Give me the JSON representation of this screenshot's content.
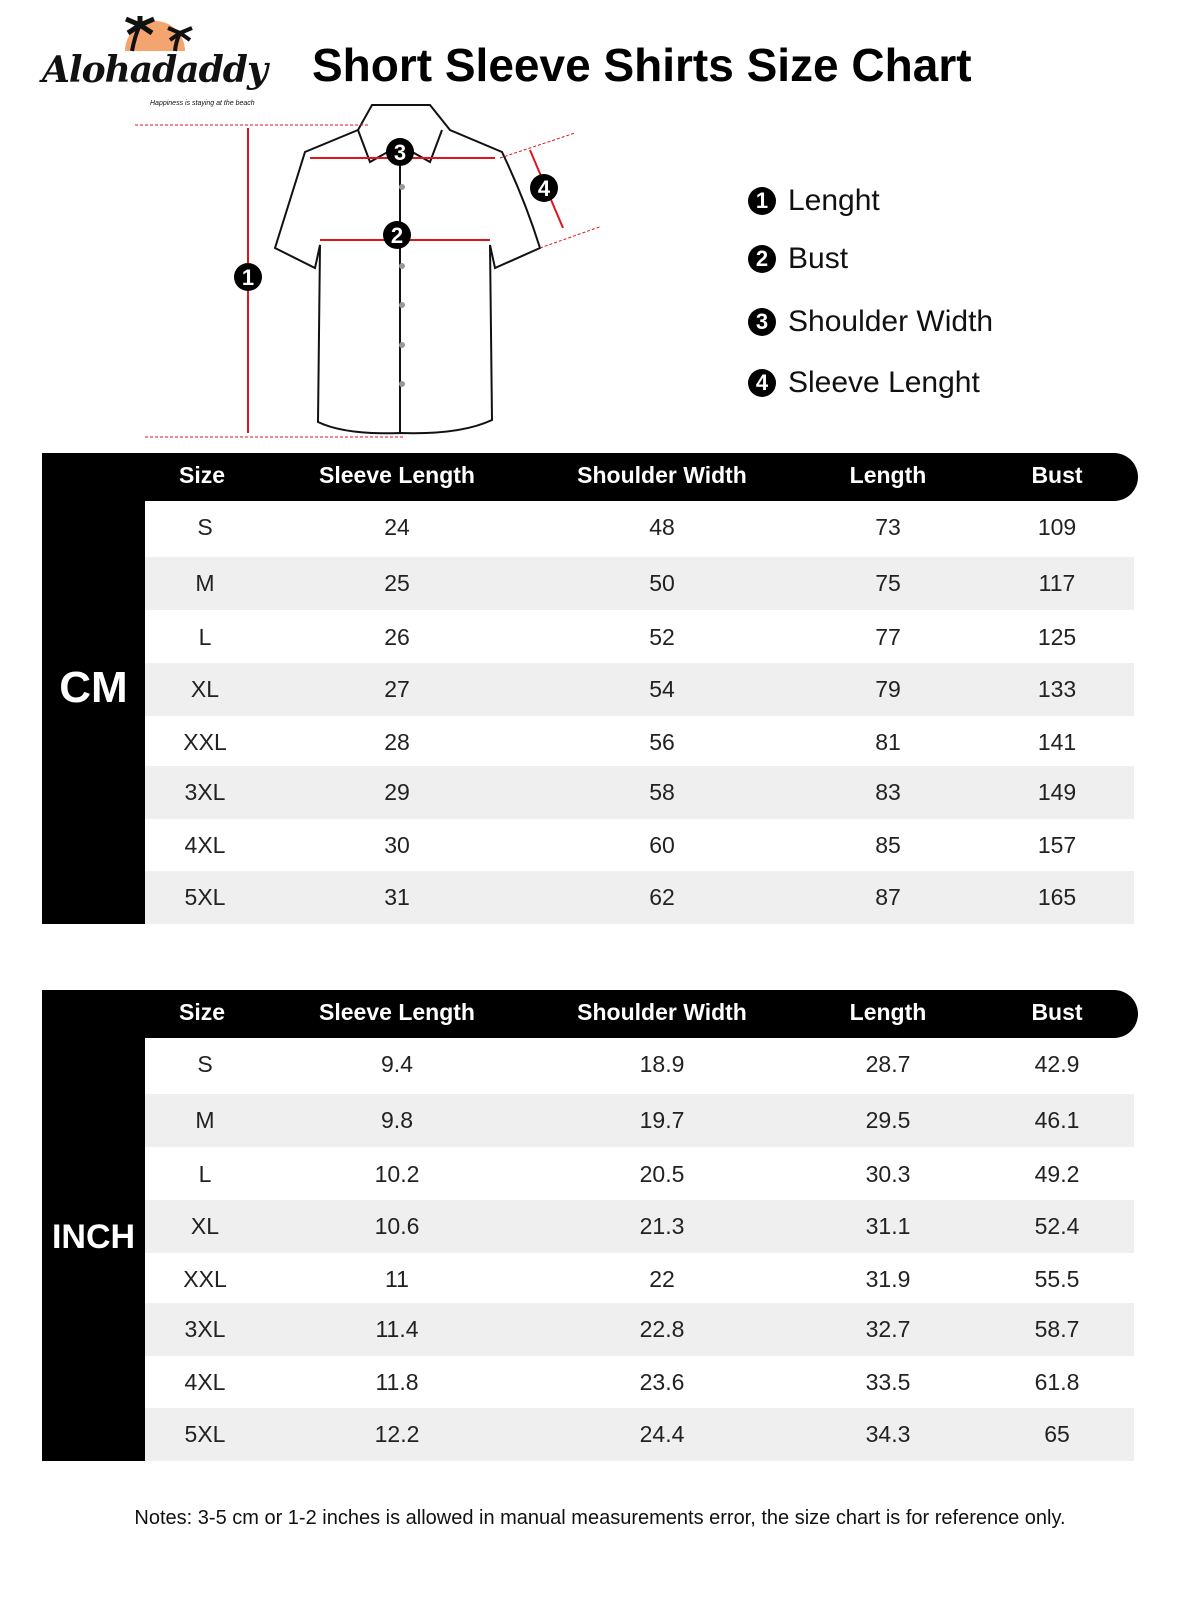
{
  "logo": {
    "name": "Alohadaddy",
    "tagline": "Happiness is staying at the beach",
    "sun_color": "#f4a46e"
  },
  "title": "Short Sleeve Shirts Size Chart",
  "diagram": {
    "markers": [
      "1",
      "2",
      "3",
      "4"
    ],
    "line_color": "#e0141e"
  },
  "legend": [
    {
      "num": "1",
      "label": "Lenght"
    },
    {
      "num": "2",
      "label": "Bust"
    },
    {
      "num": "3",
      "label": "Shoulder Width"
    },
    {
      "num": "4",
      "label": "Sleeve Lenght"
    }
  ],
  "columns": [
    "Size",
    "Sleeve Length",
    "Shoulder Width",
    "Length",
    "Bust"
  ],
  "tables": [
    {
      "unit": "CM",
      "rows": [
        [
          "S",
          "24",
          "48",
          "73",
          "109"
        ],
        [
          "M",
          "25",
          "50",
          "75",
          "117"
        ],
        [
          "L",
          "26",
          "52",
          "77",
          "125"
        ],
        [
          "XL",
          "27",
          "54",
          "79",
          "133"
        ],
        [
          "XXL",
          "28",
          "56",
          "81",
          "141"
        ],
        [
          "3XL",
          "29",
          "58",
          "83",
          "149"
        ],
        [
          "4XL",
          "30",
          "60",
          "85",
          "157"
        ],
        [
          "5XL",
          "31",
          "62",
          "87",
          "165"
        ]
      ]
    },
    {
      "unit": "INCH",
      "rows": [
        [
          "S",
          "9.4",
          "18.9",
          "28.7",
          "42.9"
        ],
        [
          "M",
          "9.8",
          "19.7",
          "29.5",
          "46.1"
        ],
        [
          "L",
          "10.2",
          "20.5",
          "30.3",
          "49.2"
        ],
        [
          "XL",
          "10.6",
          "21.3",
          "31.1",
          "52.4"
        ],
        [
          "XXL",
          "11",
          "22",
          "31.9",
          "55.5"
        ],
        [
          "3XL",
          "11.4",
          "22.8",
          "32.7",
          "58.7"
        ],
        [
          "4XL",
          "11.8",
          "23.6",
          "33.5",
          "61.8"
        ],
        [
          "5XL",
          "12.2",
          "24.4",
          "34.3",
          "65"
        ]
      ]
    }
  ],
  "notes": "Notes: 3-5 cm or 1-2 inches is allowed in manual measurements error, the size chart is for reference only."
}
